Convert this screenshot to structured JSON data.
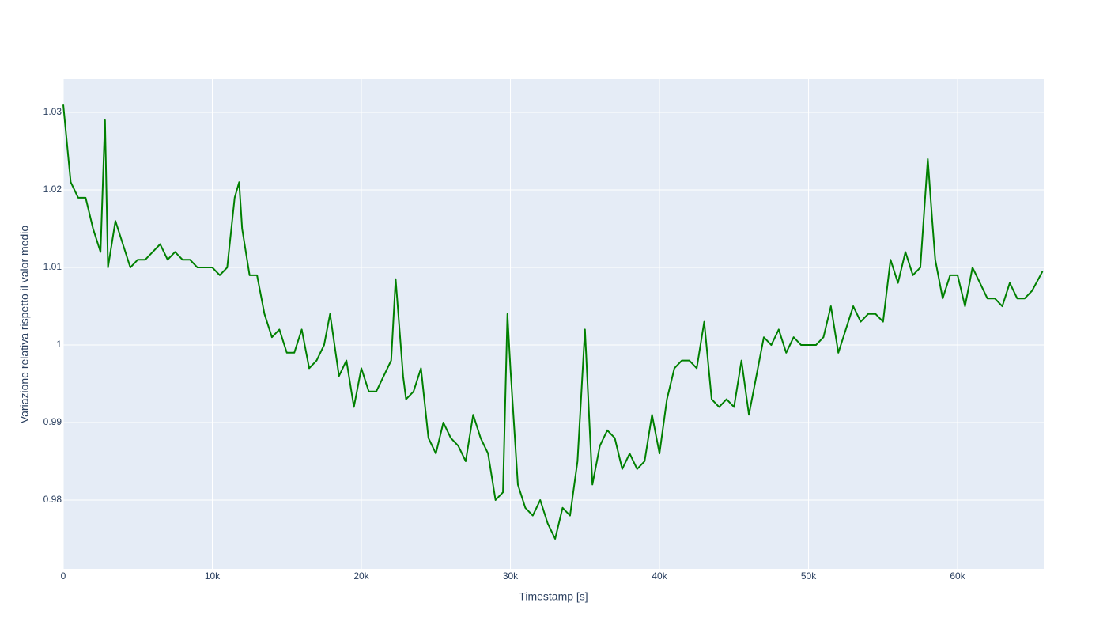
{
  "chart_data": {
    "type": "line",
    "x_label": "Timestamp [s]",
    "y_label": "Variazione relativa rispetto il valor medio",
    "grid": true,
    "xlim": [
      0,
      65780
    ],
    "ylim": [
      0.97112,
      1.03429
    ],
    "xticks": [
      0,
      {
        "value": 10000,
        "label": "10k"
      },
      {
        "value": 20000,
        "label": "20k"
      },
      {
        "value": 30000,
        "label": "30k"
      },
      {
        "value": 40000,
        "label": "40k"
      },
      {
        "value": 50000,
        "label": "50k"
      },
      {
        "value": 60000,
        "label": "60k"
      }
    ],
    "yticks": [
      0.98,
      0.99,
      1,
      1.01,
      1.02,
      1.03
    ],
    "x": [
      0,
      500,
      1000,
      1500,
      2000,
      2500,
      2800,
      3000,
      3500,
      4000,
      4500,
      5000,
      5500,
      6000,
      6500,
      7000,
      7500,
      8000,
      8500,
      9000,
      9500,
      10000,
      10500,
      11000,
      11500,
      11800,
      12000,
      12500,
      13000,
      13500,
      14000,
      14500,
      15000,
      15500,
      16000,
      16500,
      17000,
      17500,
      17900,
      18500,
      19000,
      19500,
      20000,
      20500,
      21000,
      21500,
      22000,
      22300,
      22800,
      23000,
      23500,
      24000,
      24500,
      25000,
      25500,
      26000,
      26500,
      27000,
      27500,
      28000,
      28500,
      29000,
      29500,
      29800,
      30000,
      30500,
      31000,
      31500,
      32000,
      32500,
      33000,
      33500,
      34000,
      34500,
      35000,
      35500,
      36000,
      36500,
      37000,
      37500,
      38000,
      38500,
      39000,
      39500,
      40000,
      40500,
      41000,
      41500,
      42000,
      42500,
      43000,
      43500,
      44000,
      44500,
      45000,
      45500,
      46000,
      46500,
      47000,
      47500,
      48000,
      48500,
      49000,
      49500,
      50000,
      50500,
      51000,
      51500,
      52000,
      52500,
      53000,
      53500,
      54000,
      54500,
      55000,
      55500,
      56000,
      56500,
      57000,
      57500,
      58000,
      58300,
      58500,
      59000,
      59500,
      60000,
      60500,
      61000,
      61500,
      62000,
      62500,
      63000,
      63500,
      64000,
      64500,
      65000,
      65700
    ],
    "series": [
      {
        "color": "#008000",
        "values": [
          1.031,
          1.021,
          1.019,
          1.019,
          1.015,
          1.012,
          1.029,
          1.01,
          1.016,
          1.013,
          1.01,
          1.011,
          1.011,
          1.012,
          1.013,
          1.011,
          1.012,
          1.011,
          1.011,
          1.01,
          1.01,
          1.01,
          1.009,
          1.01,
          1.019,
          1.021,
          1.015,
          1.009,
          1.009,
          1.004,
          1.001,
          1.002,
          0.999,
          0.999,
          1.002,
          0.997,
          0.998,
          1.0,
          1.004,
          0.996,
          0.998,
          0.992,
          0.997,
          0.994,
          0.994,
          0.996,
          0.998,
          1.0085,
          0.996,
          0.993,
          0.994,
          0.997,
          0.988,
          0.986,
          0.99,
          0.988,
          0.987,
          0.985,
          0.991,
          0.988,
          0.986,
          0.98,
          0.981,
          1.004,
          0.997,
          0.982,
          0.979,
          0.978,
          0.98,
          0.977,
          0.975,
          0.979,
          0.978,
          0.985,
          1.002,
          0.982,
          0.987,
          0.989,
          0.988,
          0.984,
          0.986,
          0.984,
          0.985,
          0.991,
          0.986,
          0.993,
          0.997,
          0.998,
          0.998,
          0.997,
          1.003,
          0.993,
          0.992,
          0.993,
          0.992,
          0.998,
          0.991,
          0.996,
          1.001,
          1.0,
          1.002,
          0.999,
          1.001,
          1.0,
          1.0,
          1.0,
          1.001,
          1.005,
          0.999,
          1.002,
          1.005,
          1.003,
          1.004,
          1.004,
          1.003,
          1.011,
          1.008,
          1.012,
          1.009,
          1.01,
          1.024,
          1.016,
          1.011,
          1.006,
          1.009,
          1.009,
          1.005,
          1.01,
          1.008,
          1.006,
          1.006,
          1.005,
          1.008,
          1.006,
          1.006,
          1.007,
          1.0095
        ]
      }
    ]
  }
}
